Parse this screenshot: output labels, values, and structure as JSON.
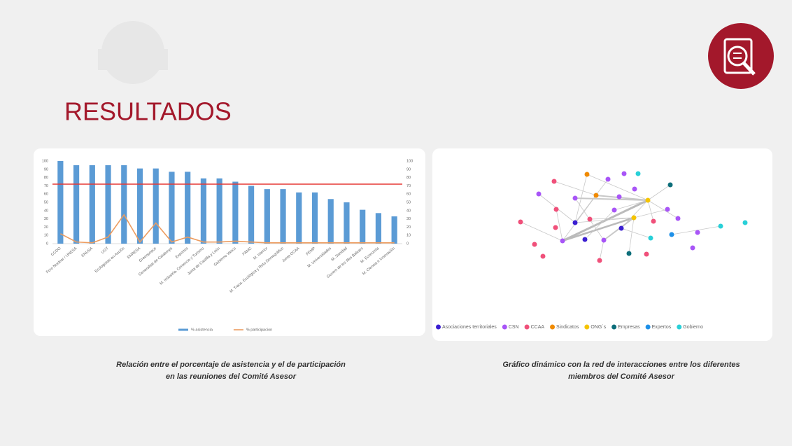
{
  "header": {
    "title": "RESULTADOS"
  },
  "chart_data": [
    {
      "type": "bar",
      "categories": [
        "CCOO",
        "Foro Nuclear / UNESA",
        "ENUSA",
        "UGT",
        "Ecologistas en Acción",
        "ENRESA",
        "Greenpeace",
        "Generalitat de Catalunya",
        "Expertos",
        "M. Industria, Comercio y Turismo",
        "Junta de Castilla y León",
        "Gobierno Vasco",
        "FAMC",
        "M. Interior",
        "M. Trans. Ecológica y Reto Demográfico",
        "Junta CCAA",
        "FEMP",
        "M. Universidades",
        "M. Sanidad",
        "Govern de les Illes Balears",
        "M. Economía",
        "M. Ciencia e Innovación"
      ],
      "series": [
        {
          "name": "% asistencia",
          "type": "bar",
          "color": "#5b9bd5",
          "values": [
            100,
            95,
            95,
            95,
            95,
            91,
            91,
            87,
            87,
            79,
            79,
            75,
            70,
            66,
            66,
            62,
            62,
            54,
            50,
            41,
            37,
            33
          ]
        },
        {
          "name": "% participacion",
          "type": "line",
          "axis": "y2",
          "color": "#ed9c5f",
          "values": [
            12,
            2,
            1,
            8,
            35,
            2,
            25,
            2,
            8,
            2,
            2,
            3,
            2,
            1,
            1,
            1,
            1,
            1,
            1,
            1,
            1,
            1
          ]
        }
      ],
      "ylim": [
        0,
        100
      ],
      "yticks": [
        0,
        10,
        20,
        30,
        40,
        50,
        60,
        70,
        80,
        90,
        100
      ],
      "y2lim": [
        0,
        100
      ],
      "y2ticks": [
        0,
        10,
        20,
        30,
        40,
        50,
        60,
        70,
        80,
        90,
        100
      ],
      "hline": {
        "value": 72,
        "color": "#e53935"
      },
      "grid": false
    }
  ],
  "network": {
    "legend": [
      {
        "name": "Asociaciones territoriales",
        "color": "#3b1fd1"
      },
      {
        "name": "CSN",
        "color": "#a855f7"
      },
      {
        "name": "CCAA",
        "color": "#f0507a"
      },
      {
        "name": "Sindicatos",
        "color": "#f08a00"
      },
      {
        "name": "ONG´s",
        "color": "#f5c400"
      },
      {
        "name": "Empresas",
        "color": "#0d6e7a"
      },
      {
        "name": "Expertos",
        "color": "#1e90e8"
      },
      {
        "name": "Gobierno",
        "color": "#29d0d8"
      }
    ]
  },
  "captions": [
    {
      "lines": [
        "Relación entre el porcentaje de asistencia y el de participación",
        "en las reuniones del Comité Asesor"
      ]
    },
    {
      "lines": [
        "Gráfico dinámico con la red de interacciones entre los diferentes",
        "miembros del Comité Asesor"
      ]
    }
  ]
}
